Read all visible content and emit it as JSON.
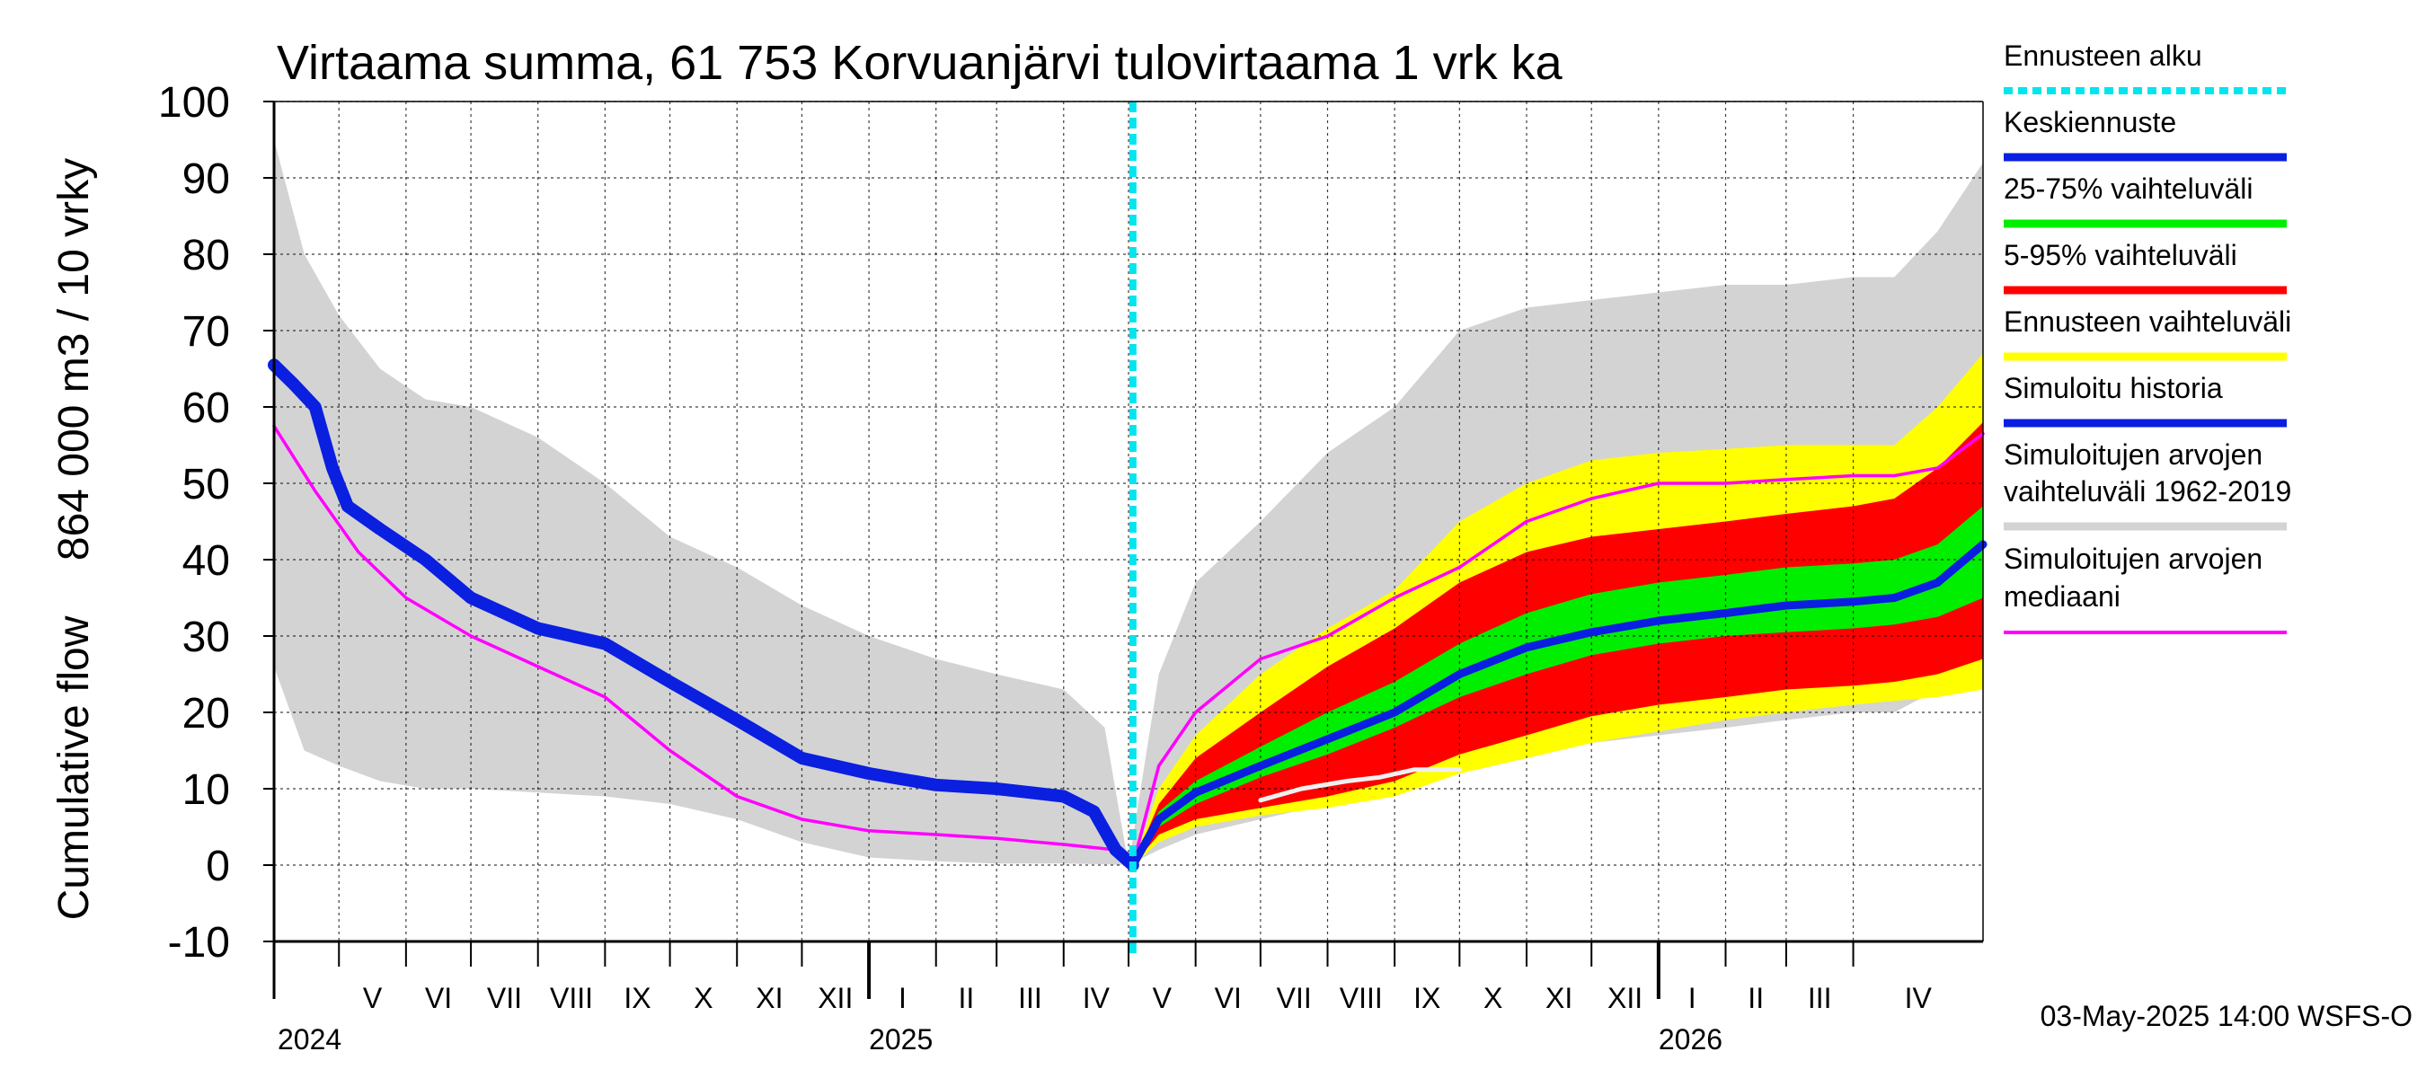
{
  "chart_data": {
    "type": "area",
    "title": "Virtaama summa, 61 753 Korvuanjärvi tulovirtaama 1 vrk ka",
    "ylabel_left": "Cumulative flow",
    "ylabel_right": "864 000 m3 / 10 vrky",
    "ylim": [
      -10,
      100
    ],
    "yticks": [
      -10,
      0,
      10,
      20,
      30,
      40,
      50,
      60,
      70,
      80,
      90,
      100
    ],
    "xlim": [
      "2024-04-01",
      "2026-05-31"
    ],
    "grid": true,
    "legend_position": "right",
    "forecast_start": "2025-05-03",
    "months": [
      {
        "label": "V",
        "start": "2024-05-01"
      },
      {
        "label": "VI",
        "start": "2024-06-01"
      },
      {
        "label": "VII",
        "start": "2024-07-01"
      },
      {
        "label": "VIII",
        "start": "2024-08-01"
      },
      {
        "label": "IX",
        "start": "2024-09-01"
      },
      {
        "label": "X",
        "start": "2024-10-01"
      },
      {
        "label": "XI",
        "start": "2024-11-01"
      },
      {
        "label": "XII",
        "start": "2024-12-01"
      },
      {
        "label": "I",
        "start": "2025-01-01"
      },
      {
        "label": "II",
        "start": "2025-02-01"
      },
      {
        "label": "III",
        "start": "2025-03-01"
      },
      {
        "label": "IV",
        "start": "2025-04-01"
      },
      {
        "label": "V",
        "start": "2025-05-01"
      },
      {
        "label": "VI",
        "start": "2025-06-01"
      },
      {
        "label": "VII",
        "start": "2025-07-01"
      },
      {
        "label": "VIII",
        "start": "2025-08-01"
      },
      {
        "label": "IX",
        "start": "2025-09-01"
      },
      {
        "label": "X",
        "start": "2025-10-01"
      },
      {
        "label": "XI",
        "start": "2025-11-01"
      },
      {
        "label": "XII",
        "start": "2025-12-01"
      },
      {
        "label": "I",
        "start": "2026-01-01"
      },
      {
        "label": "II",
        "start": "2026-02-01"
      },
      {
        "label": "III",
        "start": "2026-03-01"
      },
      {
        "label": "IV",
        "start": "2026-04-01"
      }
    ],
    "years": [
      {
        "label": "2024",
        "date": "2024-05-01"
      },
      {
        "label": "2025",
        "date": "2025-01-01"
      },
      {
        "label": "2026",
        "date": "2026-01-01"
      }
    ],
    "legend": [
      {
        "label": "Ennusteen alku",
        "color": "#00e5ee",
        "style": "dashed"
      },
      {
        "label": "Keskiennuste",
        "color": "#0a1fe0",
        "style": "solid"
      },
      {
        "label": "25-75% vaihteluväli",
        "color": "#00ee00",
        "style": "solid"
      },
      {
        "label": "5-95% vaihteluväli",
        "color": "#ff0000",
        "style": "solid"
      },
      {
        "label": "Ennusteen vaihteluväli",
        "color": "#ffff00",
        "style": "solid"
      },
      {
        "label": "Simuloitu historia",
        "color": "#0a1fe0",
        "style": "solid"
      },
      {
        "label": "Simuloitujen arvojen vaihteluväli 1962-2019",
        "lines": [
          "Simuloitujen arvojen",
          "vaihteluväli 1962-2019"
        ],
        "color": "#d3d3d3",
        "style": "solid"
      },
      {
        "label": "Simuloitujen arvojen mediaani",
        "lines": [
          "Simuloitujen arvojen",
          "mediaani"
        ],
        "color": "#ff00ff",
        "style": "solid"
      }
    ],
    "series": [
      {
        "name": "Simuloitujen arvojen vaihteluväli 1962-2019",
        "kind": "band",
        "color": "#d3d3d3",
        "x": [
          "2024-04-01",
          "2024-04-15",
          "2024-05-01",
          "2024-05-20",
          "2024-06-10",
          "2024-07-01",
          "2024-08-01",
          "2024-09-01",
          "2024-10-01",
          "2024-11-01",
          "2024-12-01",
          "2025-01-01",
          "2025-02-01",
          "2025-03-01",
          "2025-04-01",
          "2025-04-20",
          "2025-05-01",
          "2025-05-15",
          "2025-06-01",
          "2025-07-01",
          "2025-08-01",
          "2025-09-01",
          "2025-10-01",
          "2025-11-01",
          "2025-12-01",
          "2026-01-01",
          "2026-02-01",
          "2026-03-01",
          "2026-04-01",
          "2026-04-20",
          "2026-05-10",
          "2026-05-31"
        ],
        "upper": [
          95,
          80,
          72,
          65,
          61,
          60,
          56,
          50,
          43,
          39,
          34,
          30,
          27,
          25,
          23,
          18,
          0,
          25,
          37,
          45,
          54,
          60,
          70,
          73,
          74,
          75,
          76,
          76,
          77,
          77,
          83,
          92
        ],
        "lower": [
          26,
          15,
          13,
          11,
          10,
          10,
          9.5,
          9,
          8,
          6,
          3,
          1,
          0.5,
          0.2,
          0.2,
          0.1,
          0,
          2,
          4,
          6,
          8,
          10,
          12,
          14,
          16,
          17,
          18,
          19,
          20,
          20,
          23,
          25
        ]
      },
      {
        "name": "Ennusteen vaihteluväli",
        "kind": "band",
        "color": "#ffff00",
        "x": [
          "2025-05-03",
          "2025-05-15",
          "2025-06-01",
          "2025-07-01",
          "2025-08-01",
          "2025-09-01",
          "2025-10-01",
          "2025-11-01",
          "2025-12-01",
          "2026-01-01",
          "2026-02-01",
          "2026-03-01",
          "2026-04-01",
          "2026-04-20",
          "2026-05-10",
          "2026-05-31"
        ],
        "upper": [
          0,
          10,
          17,
          25,
          31,
          36,
          45,
          50,
          53,
          54,
          54.5,
          55,
          55,
          55,
          60,
          67
        ],
        "lower": [
          0,
          3,
          5,
          6.5,
          7.5,
          9,
          12,
          14,
          16,
          17.5,
          19,
          20,
          21,
          21.5,
          22,
          23
        ]
      },
      {
        "name": "5-95% vaihteluväli",
        "kind": "band",
        "color": "#ff0000",
        "x": [
          "2025-05-03",
          "2025-05-15",
          "2025-06-01",
          "2025-07-01",
          "2025-08-01",
          "2025-09-01",
          "2025-10-01",
          "2025-11-01",
          "2025-12-01",
          "2026-01-01",
          "2026-02-01",
          "2026-03-01",
          "2026-04-01",
          "2026-04-20",
          "2026-05-10",
          "2026-05-31"
        ],
        "upper": [
          0,
          8,
          14,
          20,
          26,
          31,
          37,
          41,
          43,
          44,
          45,
          46,
          47,
          48,
          52,
          58
        ],
        "lower": [
          0,
          4,
          6,
          7.5,
          9,
          11,
          14.5,
          17,
          19.5,
          21,
          22,
          23,
          23.5,
          24,
          25,
          27
        ]
      },
      {
        "name": "25-75% vaihteluväli",
        "kind": "band",
        "color": "#00ee00",
        "x": [
          "2025-05-03",
          "2025-05-15",
          "2025-06-01",
          "2025-07-01",
          "2025-08-01",
          "2025-09-01",
          "2025-10-01",
          "2025-11-01",
          "2025-12-01",
          "2026-01-01",
          "2026-02-01",
          "2026-03-01",
          "2026-04-01",
          "2026-04-20",
          "2026-05-10",
          "2026-05-31"
        ],
        "upper": [
          0,
          7,
          11,
          15.5,
          20,
          24,
          29,
          33,
          35.5,
          37,
          38,
          39,
          39.5,
          40,
          42,
          47
        ],
        "lower": [
          0,
          5,
          8,
          11.5,
          14.5,
          18,
          22,
          25,
          27.5,
          29,
          30,
          30.5,
          31,
          31.5,
          32.5,
          35
        ]
      },
      {
        "name": "Simuloitujen arvojen mediaani",
        "kind": "line",
        "color": "#ff00ff",
        "x": [
          "2024-04-01",
          "2024-04-20",
          "2024-05-10",
          "2024-06-01",
          "2024-07-01",
          "2024-08-01",
          "2024-09-01",
          "2024-10-01",
          "2024-11-01",
          "2024-12-01",
          "2025-01-01",
          "2025-02-01",
          "2025-03-01",
          "2025-04-01",
          "2025-04-25",
          "2025-05-03",
          "2025-05-15",
          "2025-06-01",
          "2025-07-01",
          "2025-08-01",
          "2025-09-01",
          "2025-10-01",
          "2025-11-01",
          "2025-12-01",
          "2026-01-01",
          "2026-02-01",
          "2026-03-01",
          "2026-04-01",
          "2026-04-20",
          "2026-05-10",
          "2026-05-31"
        ],
        "values": [
          57.5,
          49,
          41,
          35,
          30,
          26,
          22,
          15,
          9,
          6,
          4.5,
          4,
          3.5,
          2.7,
          2,
          0,
          13,
          20,
          27,
          30,
          35,
          39,
          45,
          48,
          50,
          50,
          50.5,
          51,
          51,
          52,
          56.5
        ]
      },
      {
        "name": "Keskiennuste",
        "kind": "line",
        "color": "#0a1fe0",
        "x": [
          "2025-05-03",
          "2025-05-15",
          "2025-06-01",
          "2025-07-01",
          "2025-08-01",
          "2025-09-01",
          "2025-10-01",
          "2025-11-01",
          "2025-12-01",
          "2026-01-01",
          "2026-02-01",
          "2026-03-01",
          "2026-04-01",
          "2026-04-20",
          "2026-05-10",
          "2026-05-31"
        ],
        "values": [
          0,
          6,
          9.5,
          13,
          16.5,
          20,
          25,
          28.5,
          30.5,
          32,
          33,
          34,
          34.5,
          35,
          37,
          42
        ]
      },
      {
        "name": "Simuloitu historia",
        "kind": "line",
        "color": "#0a1fe0",
        "x": [
          "2024-04-01",
          "2024-04-10",
          "2024-04-20",
          "2024-04-28",
          "2024-05-05",
          "2024-05-20",
          "2024-06-10",
          "2024-07-01",
          "2024-08-01",
          "2024-09-01",
          "2024-10-01",
          "2024-11-01",
          "2024-12-01",
          "2025-01-01",
          "2025-02-01",
          "2025-03-01",
          "2025-04-01",
          "2025-04-15",
          "2025-04-25",
          "2025-05-03"
        ],
        "values": [
          65.5,
          63,
          60,
          52,
          47,
          44,
          40,
          35,
          31,
          29,
          24,
          19,
          14,
          12,
          10.5,
          10,
          9,
          7,
          2,
          0
        ]
      },
      {
        "name": "Simuloitu historia (vaalea)",
        "kind": "line",
        "color": "#f0f0f0",
        "x": [
          "2025-07-01",
          "2025-07-20",
          "2025-08-10",
          "2025-08-25",
          "2025-09-10",
          "2025-10-01"
        ],
        "values": [
          8.5,
          10,
          11,
          11.5,
          12.5,
          12.5
        ]
      }
    ]
  },
  "footer": {
    "timestamp": "03-May-2025 14:00 WSFS-O"
  }
}
